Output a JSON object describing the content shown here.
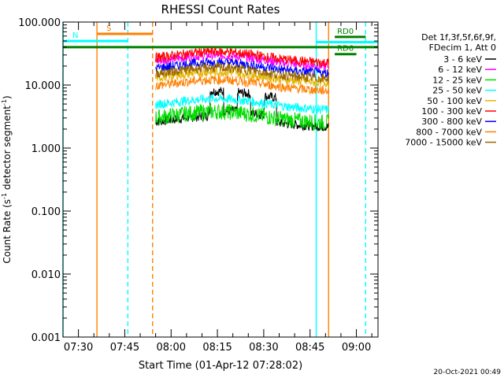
{
  "chart_data": {
    "type": "line",
    "title": "RHESSI Count Rates",
    "xlabel": "Start Time (01-Apr-12 07:28:02)",
    "ylabel_main": "Count Rate (s",
    "ylabel_sup": "-1",
    "ylabel_rest": " detector segment",
    "ylabel_sup2": "-1",
    "ylabel_close": ")",
    "y_scale": "log",
    "ylim": [
      0.001,
      100
    ],
    "xlim": [
      "07:25",
      "09:07"
    ],
    "x_ticks": [
      {
        "t": "07:30",
        "label": "07:30"
      },
      {
        "t": "07:45",
        "label": "07:45"
      },
      {
        "t": "08:00",
        "label": "08:00"
      },
      {
        "t": "08:15",
        "label": "08:15"
      },
      {
        "t": "08:30",
        "label": "08:30"
      },
      {
        "t": "08:45",
        "label": "08:45"
      },
      {
        "t": "09:00",
        "label": "09:00"
      }
    ],
    "y_ticks": [
      {
        "v": 100,
        "label": "100.000"
      },
      {
        "v": 10,
        "label": "10.000"
      },
      {
        "v": 1,
        "label": "1.000"
      },
      {
        "v": 0.1,
        "label": "0.100"
      },
      {
        "v": 0.01,
        "label": "0.010"
      },
      {
        "v": 0.001,
        "label": "0.001"
      }
    ],
    "legend_header": [
      "Det 1f,3f,5f,6f,9f,",
      "FDecim 1, Att 0"
    ],
    "series": [
      {
        "name": "3 - 6 keV",
        "color": "#000000",
        "level": 2.4
      },
      {
        "name": "6 - 12 keV",
        "color": "#ff00ff",
        "level": 22
      },
      {
        "name": "12 - 25 keV",
        "color": "#00dd00",
        "level": 2.8
      },
      {
        "name": "25 - 50 keV",
        "color": "#00ffff",
        "level": 4.5
      },
      {
        "name": "50 - 100 keV",
        "color": "#e6b400",
        "level": 12
      },
      {
        "name": "100 - 300 keV",
        "color": "#ff0000",
        "level": 25
      },
      {
        "name": "300 - 800 keV",
        "color": "#0000ff",
        "level": 17
      },
      {
        "name": "800 - 7000 keV",
        "color": "#ff8000",
        "level": 9
      },
      {
        "name": "7000 - 15000 keV",
        "color": "#996600",
        "level": 14
      }
    ],
    "data_interval": {
      "start": "07:55",
      "end": "08:51"
    },
    "flags": [
      {
        "label": "S",
        "color": "#ff8000",
        "start": "07:36",
        "end": "07:54",
        "value": 65
      },
      {
        "label": "N",
        "color": "#00ffff",
        "start": "07:25",
        "end": "07:46",
        "value": 50
      },
      {
        "label": "RD0",
        "color": "#008000",
        "start": "08:53",
        "end": "09:03",
        "value": 58
      },
      {
        "label": "RD6",
        "color": "#008000",
        "start": "08:53",
        "end": "09:00",
        "value": 31
      },
      {
        "label": "",
        "color": "#008000",
        "start": "07:25",
        "end": "09:07",
        "value": 40
      },
      {
        "label": "",
        "color": "#00ffff",
        "start": "08:47",
        "end": "09:07",
        "value": 48
      }
    ],
    "vlines": [
      {
        "t": "07:25",
        "color": "#00ffff",
        "dash": false
      },
      {
        "t": "07:36",
        "color": "#ff8000",
        "dash": false
      },
      {
        "t": "07:46",
        "color": "#00ffff",
        "dash": true
      },
      {
        "t": "07:54",
        "color": "#ff8000",
        "dash": true
      },
      {
        "t": "08:47",
        "color": "#00ffff",
        "dash": false
      },
      {
        "t": "08:51",
        "color": "#ff8000",
        "dash": false
      },
      {
        "t": "09:03",
        "color": "#00ffff",
        "dash": true
      }
    ],
    "timestamp": "20-Oct-2021 00:49",
    "grid": false,
    "legend_position": "right"
  }
}
